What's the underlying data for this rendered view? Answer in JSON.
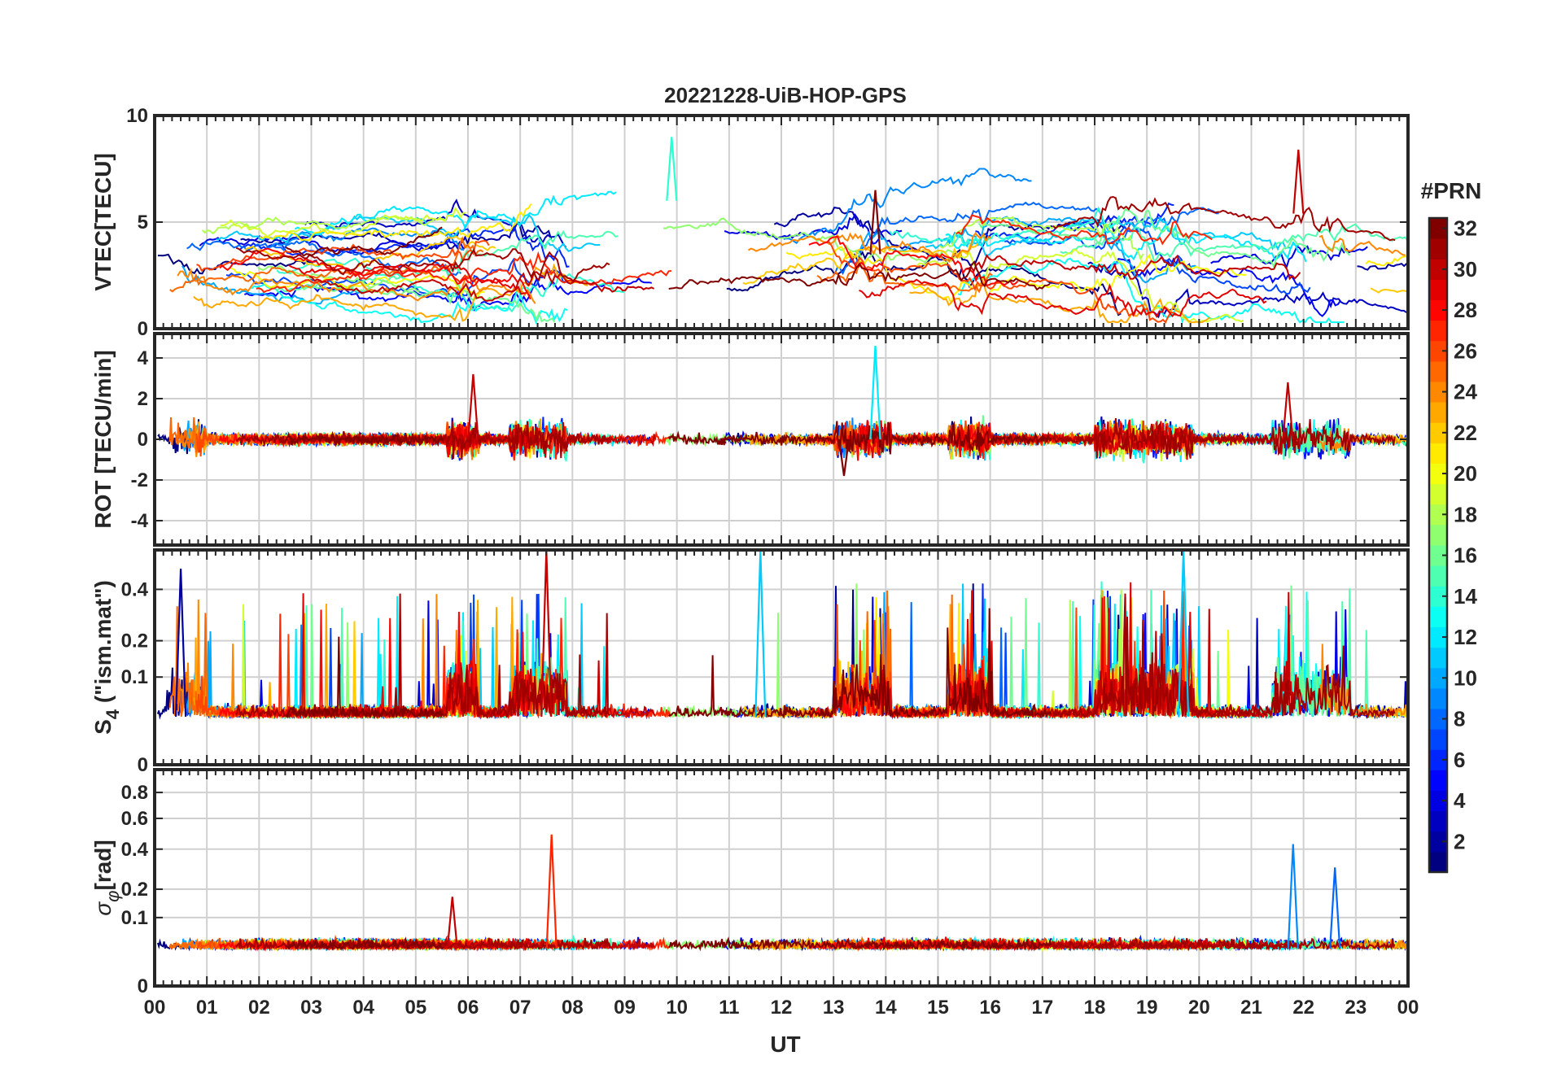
{
  "chart_data": {
    "type": "line",
    "title": "20221228-UiB-HOP-GPS",
    "xlabel": "UT",
    "x_range_hours": [
      0,
      24
    ],
    "x_tick_labels": [
      "00",
      "01",
      "02",
      "03",
      "04",
      "05",
      "06",
      "07",
      "08",
      "09",
      "10",
      "11",
      "12",
      "13",
      "14",
      "15",
      "16",
      "17",
      "18",
      "19",
      "20",
      "21",
      "22",
      "23",
      "00"
    ],
    "colorbar": {
      "title": "#PRN",
      "range": [
        1,
        32
      ],
      "tick_labels": [
        "2",
        "4",
        "6",
        "8",
        "10",
        "12",
        "14",
        "16",
        "18",
        "20",
        "22",
        "24",
        "26",
        "28",
        "30",
        "32"
      ],
      "colormap": "jet"
    },
    "panels": [
      {
        "id": "vtec",
        "ylabel": "VTEC[TECU]",
        "ylim": [
          0,
          10
        ],
        "y_ticks": [
          0,
          5,
          10
        ],
        "y_tick_labels": [
          "0",
          "5",
          "10"
        ],
        "typical_range": [
          1,
          6
        ],
        "notable_features": [
          {
            "x_hour": 9.9,
            "value": 9.0,
            "prn": 14
          },
          {
            "x_hour": 13.8,
            "value": 6.5,
            "prn": 32
          },
          {
            "x_hour": 21.9,
            "value": 8.4,
            "prn": 30
          }
        ]
      },
      {
        "id": "rot",
        "ylabel": "ROT [TECU/min]",
        "ylim": [
          -5.2,
          5.2
        ],
        "y_ticks": [
          -4,
          -2,
          0,
          2,
          4
        ],
        "y_tick_labels": [
          "-4",
          "-2",
          "0",
          "2",
          "4"
        ],
        "notable_features": [
          {
            "x_hour": 6.1,
            "value": 3.2,
            "prn": 30
          },
          {
            "x_hour": 13.8,
            "value": 4.6,
            "prn": 12
          },
          {
            "x_hour": 13.2,
            "value": -1.8,
            "prn": 32
          },
          {
            "x_hour": 21.7,
            "value": 2.8,
            "prn": 30
          }
        ]
      },
      {
        "id": "s4",
        "ylabel_main": "S",
        "ylabel_sub": "4",
        "ylabel_suffix": " (\"ism.mat\")",
        "ylim": [
          0,
          0.6
        ],
        "y_scale": "sqrt",
        "y_ticks": [
          0,
          0.1,
          0.2,
          0.4
        ],
        "y_tick_labels": [
          "0",
          "0.1",
          "0.2",
          "0.4"
        ],
        "notable_features": [
          {
            "x_hour": 0.5,
            "value": 0.5,
            "prn": 2
          },
          {
            "x_hour": 7.5,
            "value": 0.6,
            "prn": 30
          },
          {
            "x_hour": 11.6,
            "value": 0.6,
            "prn": 11
          },
          {
            "x_hour": 19.7,
            "value": 0.6,
            "prn": 11
          }
        ]
      },
      {
        "id": "sigma_phi",
        "ylabel_main": "σ",
        "ylabel_sub": "φ",
        "ylabel_suffix": "[rad]",
        "ylim": [
          0,
          1
        ],
        "y_scale": "sqrt",
        "y_ticks": [
          0,
          0.1,
          0.2,
          0.4,
          0.6,
          0.8
        ],
        "y_tick_labels": [
          "0",
          "0.1",
          "0.2",
          "0.4",
          "0.6",
          "0.8"
        ],
        "notable_features": [
          {
            "x_hour": 7.6,
            "value": 0.49,
            "prn": 27
          },
          {
            "x_hour": 21.8,
            "value": 0.43,
            "prn": 9
          },
          {
            "x_hour": 22.6,
            "value": 0.3,
            "prn": 8
          },
          {
            "x_hour": 5.7,
            "value": 0.17,
            "prn": 30
          }
        ]
      }
    ]
  }
}
